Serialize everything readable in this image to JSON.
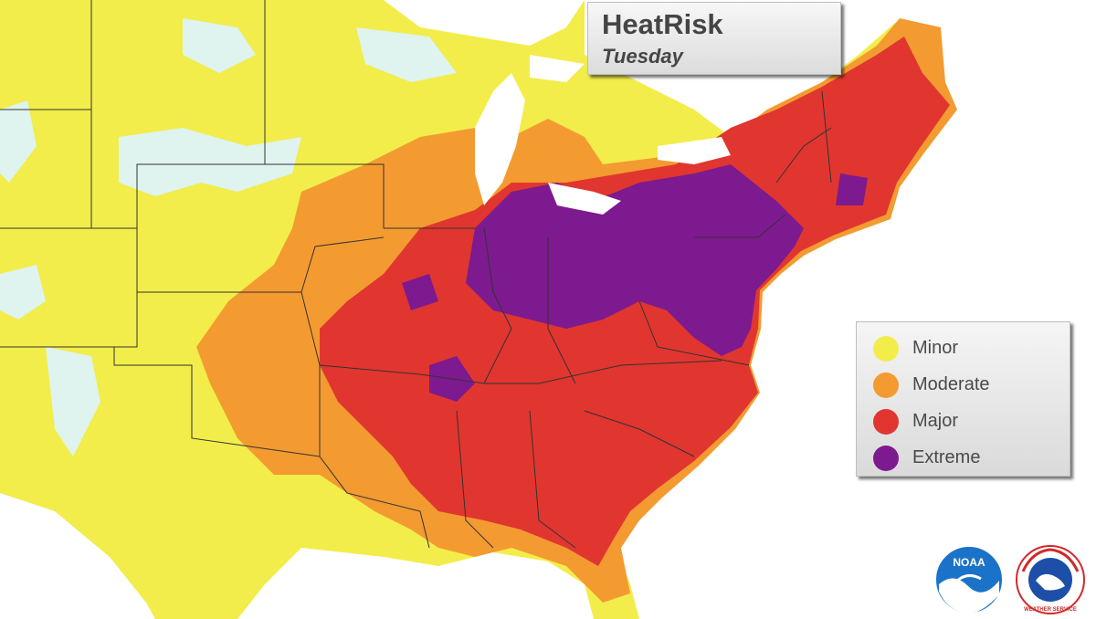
{
  "title": "HeatRisk",
  "subtitle": "Tuesday",
  "legend": [
    {
      "label": "Minor",
      "color": "#f2ed4a"
    },
    {
      "label": "Moderate",
      "color": "#f39b30"
    },
    {
      "label": "Major",
      "color": "#e0362f"
    },
    {
      "label": "Extreme",
      "color": "#7d1a8f"
    }
  ],
  "colors": {
    "none": "#dff3ef",
    "minor": "#f2ed4a",
    "moderate": "#f39b30",
    "major": "#e0362f",
    "extreme": "#7d1a8f",
    "water": "#ffffff",
    "border": "#333333"
  },
  "logos": {
    "noaa": {
      "text": "NOAA",
      "icon": "noaa-logo"
    },
    "nws": {
      "text": "NATIONAL WEATHER SERVICE",
      "icon": "nws-logo"
    }
  }
}
